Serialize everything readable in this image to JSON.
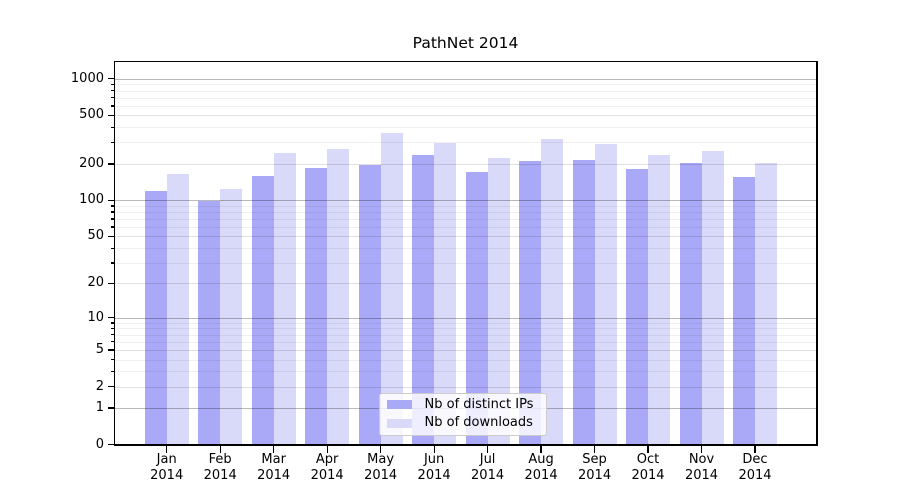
{
  "chart_data": {
    "type": "bar",
    "title": "PathNet 2014",
    "year": "2014",
    "categories": [
      "Jan",
      "Feb",
      "Mar",
      "Apr",
      "May",
      "Jun",
      "Jul",
      "Aug",
      "Sep",
      "Oct",
      "Nov",
      "Dec"
    ],
    "series": [
      {
        "name": "Nb of distinct IPs",
        "color": "#a9a9f7",
        "values": [
          120,
          98,
          160,
          186,
          195,
          238,
          170,
          212,
          215,
          182,
          203,
          155
        ]
      },
      {
        "name": "Nb of downloads",
        "color": "#d9d9fa",
        "values": [
          165,
          123,
          245,
          264,
          358,
          294,
          224,
          320,
          289,
          237,
          256,
          203
        ]
      }
    ],
    "xlabel": "",
    "ylabel": "",
    "scale": "log1p",
    "ylim": [
      0,
      1400
    ],
    "y_ticks": [
      0,
      1,
      2,
      5,
      10,
      20,
      50,
      100,
      200,
      500,
      1000
    ],
    "grid": {
      "on": true,
      "major_lines": [
        1,
        10,
        100,
        1000
      ],
      "mid_lines": [
        2,
        5,
        20,
        50,
        200,
        500
      ],
      "minor_lines": [
        3,
        4,
        6,
        7,
        8,
        9,
        30,
        40,
        60,
        70,
        80,
        90,
        300,
        400,
        600,
        700,
        800,
        900
      ]
    },
    "legend_position": "lower center"
  }
}
